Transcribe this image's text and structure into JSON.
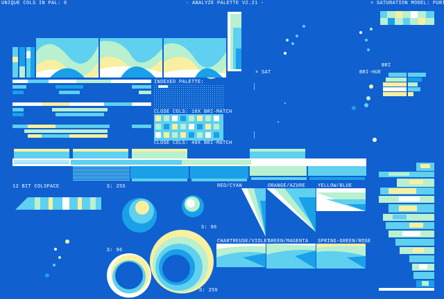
{
  "header": {
    "left": "UNIQUE COLS IN PAL: 6",
    "title": "- ANALYZE PALETTE V2.21 -",
    "right": "× SATURATION MODEL: PURIT"
  },
  "labels": {
    "indexed": "INDEXED PALETTE:",
    "close10": "CLOSE COLS: 10X BRI-MATCH",
    "close40": "CLOSE COLS: 40X BRI-MATCH",
    "sat": "× SAT",
    "bri": "BRI",
    "brihue": "BRI-HUE",
    "colspace": "12 BIT COLSPACE",
    "s1": "S: 255",
    "s2": "S: 96",
    "s3": "S: 96",
    "s4": "S: 255"
  },
  "hues": [
    "RED/CYAN",
    "ORANGE/AZURE",
    "YELLOW/BLUE",
    "CHARTREUSE/VIOLET",
    "GREEN/MAGENTA",
    "SPRING-GREEN/ROSE"
  ]
}
